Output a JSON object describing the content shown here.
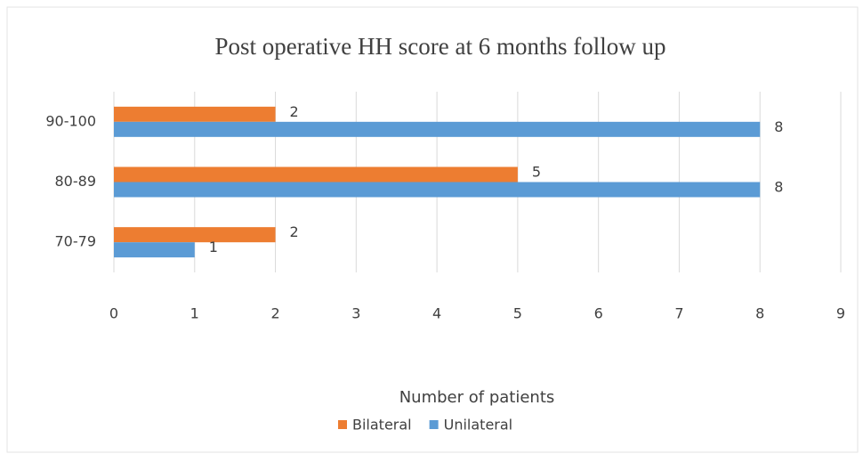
{
  "chart_data": {
    "type": "hbar",
    "title": "Post operative HH score at 6 months follow up",
    "categories": [
      "90-100",
      "80-89",
      "70-79"
    ],
    "series": [
      {
        "name": "Bilateral",
        "color": "#ed7d31",
        "values": [
          2,
          5,
          2
        ]
      },
      {
        "name": "Unilateral",
        "color": "#5b9bd5",
        "values": [
          8,
          8,
          1
        ]
      }
    ],
    "xlabel": "Number of patients",
    "xlim": [
      0,
      9
    ],
    "xticks": [
      0,
      1,
      2,
      3,
      4,
      5,
      6,
      7,
      8,
      9
    ],
    "grid": true,
    "legend": "bottom",
    "data_labels": true
  }
}
